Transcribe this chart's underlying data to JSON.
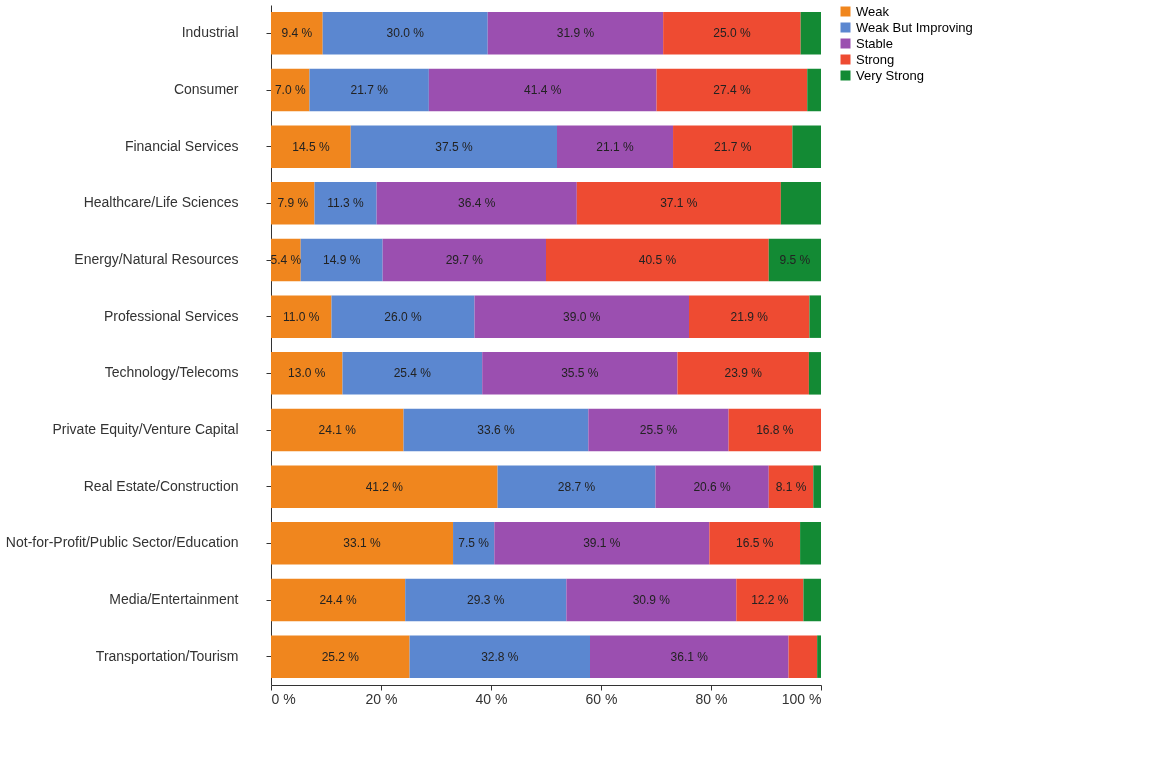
{
  "chart_data": {
    "type": "bar",
    "orientation": "horizontal",
    "stacked": true,
    "categories": [
      "Industrial",
      "Consumer",
      "Financial Services",
      "Healthcare/Life Sciences",
      "Energy/Natural Resources",
      "Professional Services",
      "Technology/Telecoms",
      "Private Equity/Venture Capital",
      "Real Estate/Construction",
      "Not-for-Profit/Public Sector/Education",
      "Media/Entertainment",
      "Transportation/Tourism"
    ],
    "series": [
      {
        "name": "Weak",
        "color": "#f0861e",
        "values": [
          9.4,
          7.0,
          14.5,
          7.9,
          5.4,
          11.0,
          13.0,
          24.1,
          41.2,
          33.1,
          24.4,
          25.2
        ],
        "value_labels": [
          "9.4 %",
          "7.0 %",
          "14.5 %",
          "7.9 %",
          "5.4 %",
          "11.0 %",
          "13.0 %",
          "24.1 %",
          "41.2 %",
          "33.1 %",
          "24.4 %",
          "25.2 %"
        ]
      },
      {
        "name": "Weak But Improving",
        "color": "#5b87d0",
        "values": [
          30.0,
          21.7,
          37.5,
          11.3,
          14.9,
          26.0,
          25.4,
          33.6,
          28.7,
          7.5,
          29.3,
          32.8
        ],
        "value_labels": [
          "30.0 %",
          "21.7 %",
          "37.5 %",
          "11.3 %",
          "14.9 %",
          "26.0 %",
          "25.4 %",
          "33.6 %",
          "28.7 %",
          "7.5 %",
          "29.3 %",
          "32.8 %"
        ]
      },
      {
        "name": "Stable",
        "color": "#9b4fb0",
        "values": [
          31.9,
          41.4,
          21.1,
          36.4,
          29.7,
          39.0,
          35.5,
          25.5,
          20.6,
          39.1,
          30.9,
          36.1
        ],
        "value_labels": [
          "31.9 %",
          "41.4 %",
          "21.1 %",
          "36.4 %",
          "29.7 %",
          "39.0 %",
          "35.5 %",
          "25.5 %",
          "20.6 %",
          "39.1 %",
          "30.9 %",
          "36.1 %"
        ]
      },
      {
        "name": "Strong",
        "color": "#ee4b32",
        "values": [
          25.0,
          27.4,
          21.7,
          37.1,
          40.5,
          21.9,
          23.9,
          16.8,
          8.1,
          16.5,
          12.2,
          5.2
        ],
        "value_labels": [
          "25.0 %",
          "27.4 %",
          "21.7 %",
          "37.1 %",
          "40.5 %",
          "21.9 %",
          "23.9 %",
          "16.8 %",
          "8.1 %",
          "16.5 %",
          "12.2 %",
          null
        ]
      },
      {
        "name": "Very Strong",
        "color": "#138a34",
        "values": [
          3.7,
          2.5,
          5.2,
          7.3,
          9.5,
          2.1,
          2.2,
          0.0,
          1.4,
          3.8,
          3.2,
          0.7
        ],
        "value_labels": [
          null,
          null,
          null,
          null,
          "9.5 %",
          null,
          null,
          null,
          null,
          null,
          null,
          null
        ]
      }
    ],
    "xlim": [
      0,
      100
    ],
    "xticks": [
      {
        "value": 0,
        "label": "0 %"
      },
      {
        "value": 20,
        "label": "20 %"
      },
      {
        "value": 40,
        "label": "40 %"
      },
      {
        "value": 60,
        "label": "60 %"
      },
      {
        "value": 80,
        "label": "80 %"
      },
      {
        "value": 100,
        "label": "100 %"
      }
    ],
    "grid": false,
    "legend": "right"
  }
}
